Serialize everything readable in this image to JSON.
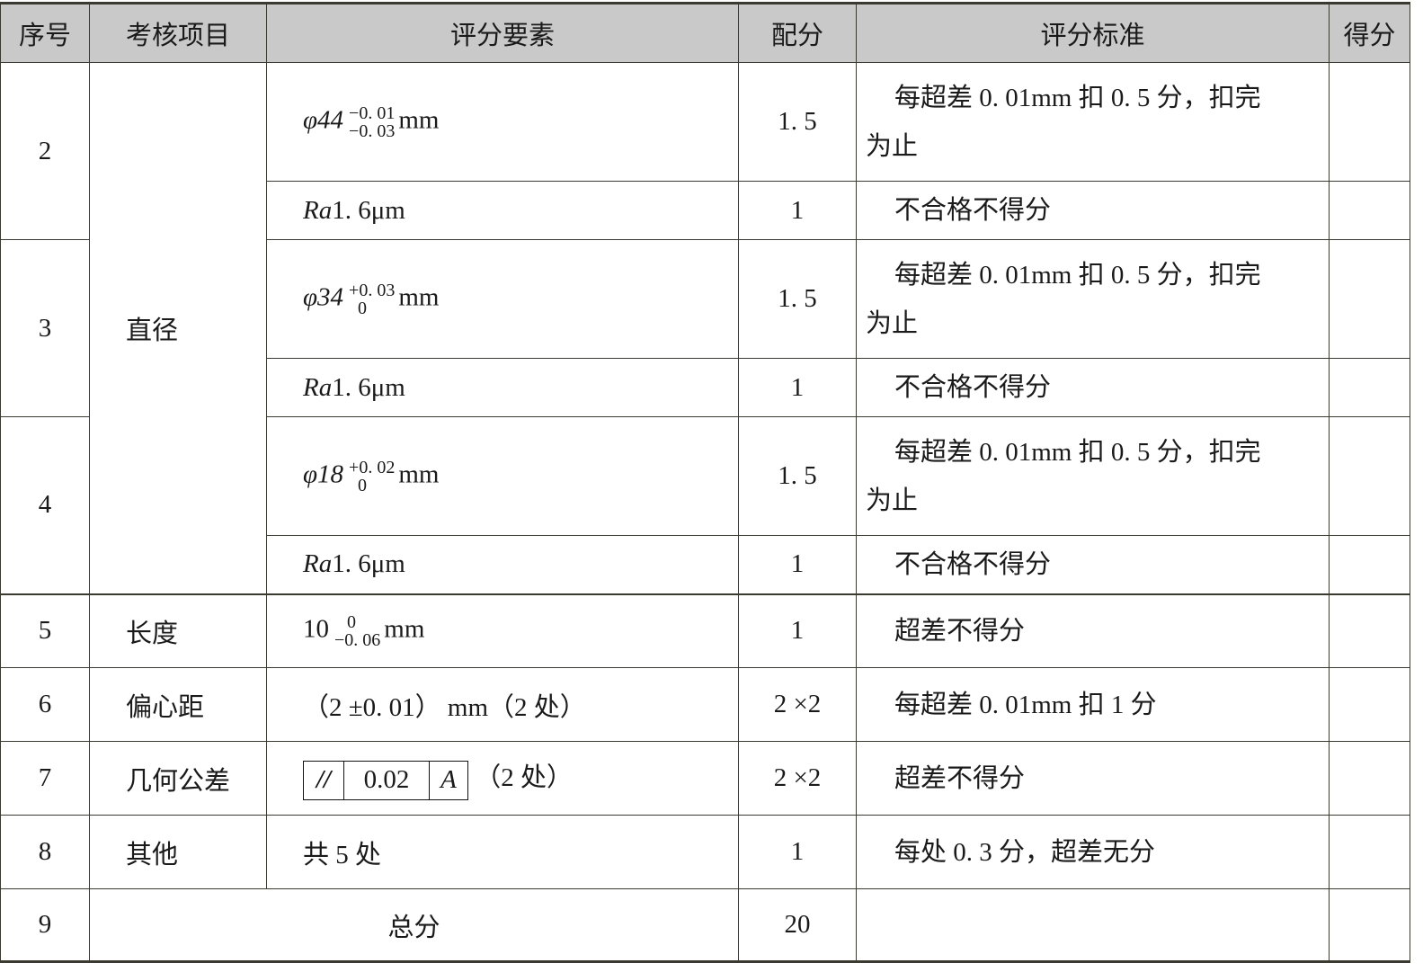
{
  "headers": [
    "序号",
    "考核项目",
    "评分要素",
    "配分",
    "评分标准",
    "得分"
  ],
  "group_diameter": "直径",
  "rows": [
    {
      "no": "2",
      "phi": "φ44",
      "upper": "−0. 01",
      "lower": "−0. 03",
      "unit": "mm",
      "score": "1. 5",
      "crit_a": "每超差 0. 01mm 扣 0. 5 分，扣完",
      "crit_b": "为止",
      "ra": "Ra",
      "ra_val": "1. 6μm",
      "ra_score": "1",
      "ra_crit": "不合格不得分"
    },
    {
      "no": "3",
      "phi": "φ34",
      "upper": "+0. 03",
      "lower": "0",
      "unit": "mm",
      "score": "1. 5",
      "crit_a": "每超差 0. 01mm 扣 0. 5 分，扣完",
      "crit_b": "为止",
      "ra": "Ra",
      "ra_val": "1. 6μm",
      "ra_score": "1",
      "ra_crit": "不合格不得分"
    },
    {
      "no": "4",
      "phi": "φ18",
      "upper": "+0. 02",
      "lower": "0",
      "unit": "mm",
      "score": "1. 5",
      "crit_a": "每超差 0. 01mm 扣 0. 5 分，扣完",
      "crit_b": "为止",
      "ra": "Ra",
      "ra_val": "1. 6μm",
      "ra_score": "1",
      "ra_crit": "不合格不得分"
    }
  ],
  "length": {
    "no": "5",
    "item": "长度",
    "base": "10",
    "upper": "0",
    "lower": "−0. 06",
    "unit": "mm",
    "score": "1",
    "crit": "超差不得分"
  },
  "ecc": {
    "no": "6",
    "item": "偏心距",
    "elem": "（2 ±0. 01） mm（2 处）",
    "score": "2 ×2",
    "crit": "每超差 0. 01mm 扣 1 分"
  },
  "geo": {
    "no": "7",
    "item": "几何公差",
    "symbol": "//",
    "value": "0.02",
    "datum": "A",
    "note": "（2 处）",
    "score": "2 ×2",
    "crit": "超差不得分"
  },
  "other": {
    "no": "8",
    "item": "其他",
    "elem": "共 5 处",
    "score": "1",
    "crit": "每处 0. 3 分，超差无分"
  },
  "total": {
    "no": "9",
    "label": "总分",
    "score": "20"
  }
}
